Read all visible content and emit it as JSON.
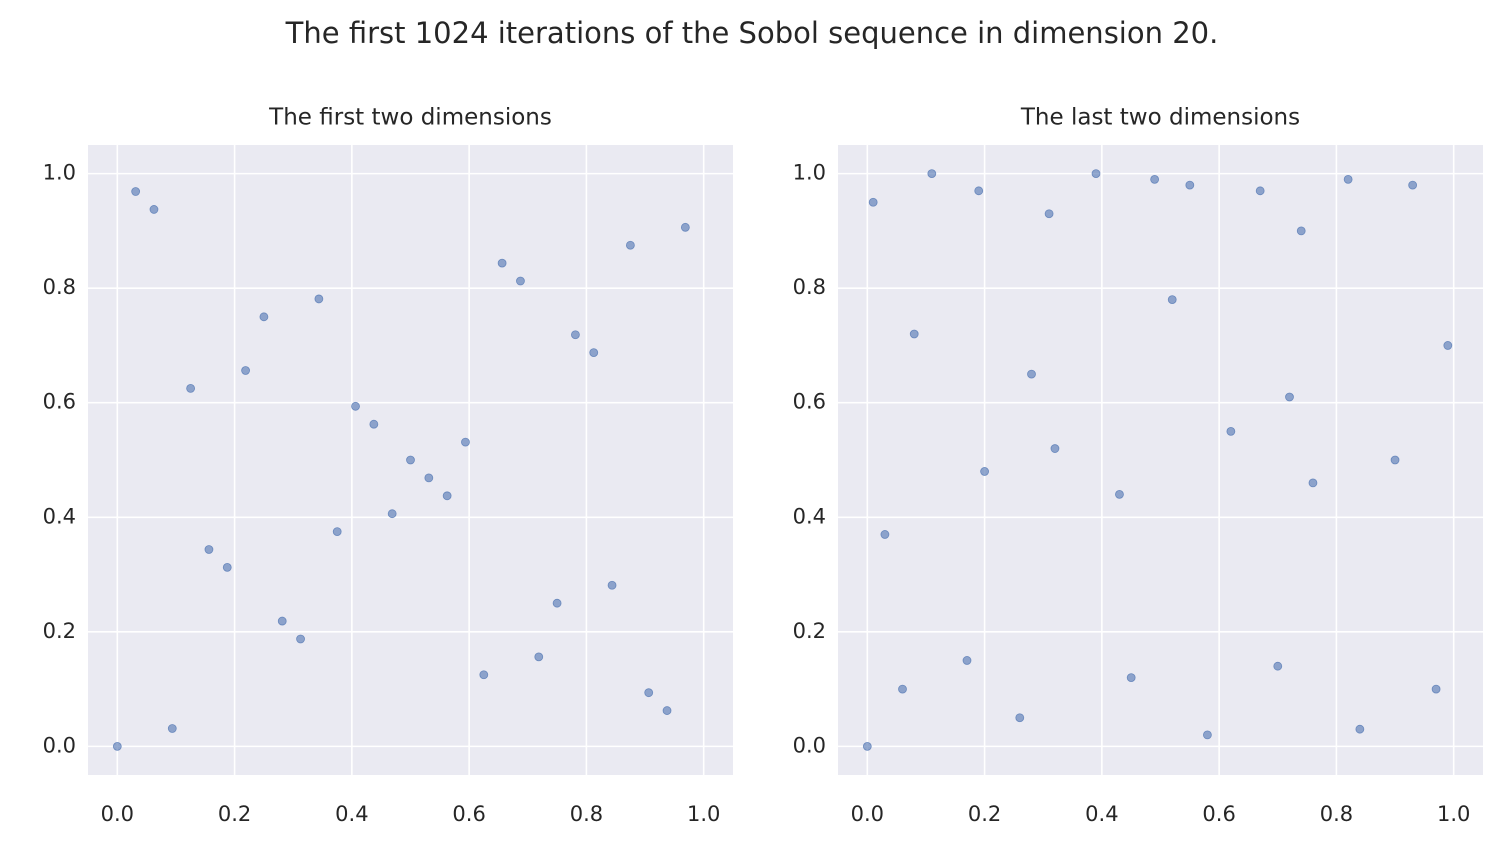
{
  "title": "The first 1024 iterations of the Sobol sequence in dimension 20.",
  "chart_data": [
    {
      "type": "scatter",
      "title": "The first two dimensions",
      "color": "#4c72b0",
      "grid": true,
      "xlim": [
        -0.05,
        1.05
      ],
      "ylim": [
        -0.05,
        1.05
      ],
      "xticks": [
        {
          "value": 0,
          "label": "0.0"
        },
        0.2,
        0.4,
        0.6,
        0.8,
        {
          "value": 1,
          "label": "1.0"
        }
      ],
      "yticks": [
        {
          "value": 0,
          "label": "0.0"
        },
        0.2,
        0.4,
        0.6,
        0.8,
        {
          "value": 1,
          "label": "1.0"
        }
      ],
      "x": [
        0,
        0.5,
        0.75,
        0.25,
        0.375,
        0.875,
        0.625,
        0.125,
        0.1875,
        0.6875,
        0.9375,
        0.4375,
        0.3125,
        0.8125,
        0.5625,
        0.0625,
        0.09375,
        0.59375,
        0.84375,
        0.34375,
        0.46875,
        0.96875,
        0.71875,
        0.21875,
        0.15625,
        0.65625,
        0.90625,
        0.40625,
        0.28125,
        0.78125,
        0.53125,
        0.03125
      ],
      "y": [
        0,
        0.5,
        0.25,
        0.75,
        0.375,
        0.875,
        0.125,
        0.625,
        0.3125,
        0.8125,
        0.0625,
        0.5625,
        0.1875,
        0.6875,
        0.4375,
        0.9375,
        0.03125,
        0.53125,
        0.28125,
        0.78125,
        0.40625,
        0.90625,
        0.15625,
        0.65625,
        0.34375,
        0.84375,
        0.09375,
        0.59375,
        0.21875,
        0.71875,
        0.46875,
        0.96875
      ]
    },
    {
      "type": "scatter",
      "title": "The last two dimensions",
      "color": "#4c72b0",
      "grid": true,
      "xlim": [
        -0.05,
        1.05
      ],
      "ylim": [
        -0.05,
        1.05
      ],
      "xticks": [
        {
          "value": 0,
          "label": "0.0"
        },
        0.2,
        0.4,
        0.6,
        0.8,
        {
          "value": 1,
          "label": "1.0"
        }
      ],
      "yticks": [
        {
          "value": 0,
          "label": "0.0"
        },
        0.2,
        0.4,
        0.6,
        0.8,
        {
          "value": 1,
          "label": "1.0"
        }
      ],
      "x": [
        0,
        0.01,
        0.11,
        0.19,
        0.31,
        0.39,
        0.49,
        0.55,
        0.67,
        0.74,
        0.82,
        0.93,
        0.06,
        0.17,
        0.26,
        0.45,
        0.58,
        0.7,
        0.84,
        0.97,
        0.03,
        0.2,
        0.32,
        0.43,
        0.62,
        0.76,
        0.9,
        0.08,
        0.28,
        0.52,
        0.72,
        0.99
      ],
      "y": [
        0,
        0.95,
        1.0,
        0.97,
        0.93,
        1.0,
        0.99,
        0.98,
        0.97,
        0.9,
        0.99,
        0.98,
        0.1,
        0.15,
        0.05,
        0.12,
        0.02,
        0.14,
        0.03,
        0.1,
        0.37,
        0.48,
        0.52,
        0.44,
        0.55,
        0.46,
        0.5,
        0.72,
        0.65,
        0.78,
        0.61,
        0.7
      ]
    }
  ]
}
